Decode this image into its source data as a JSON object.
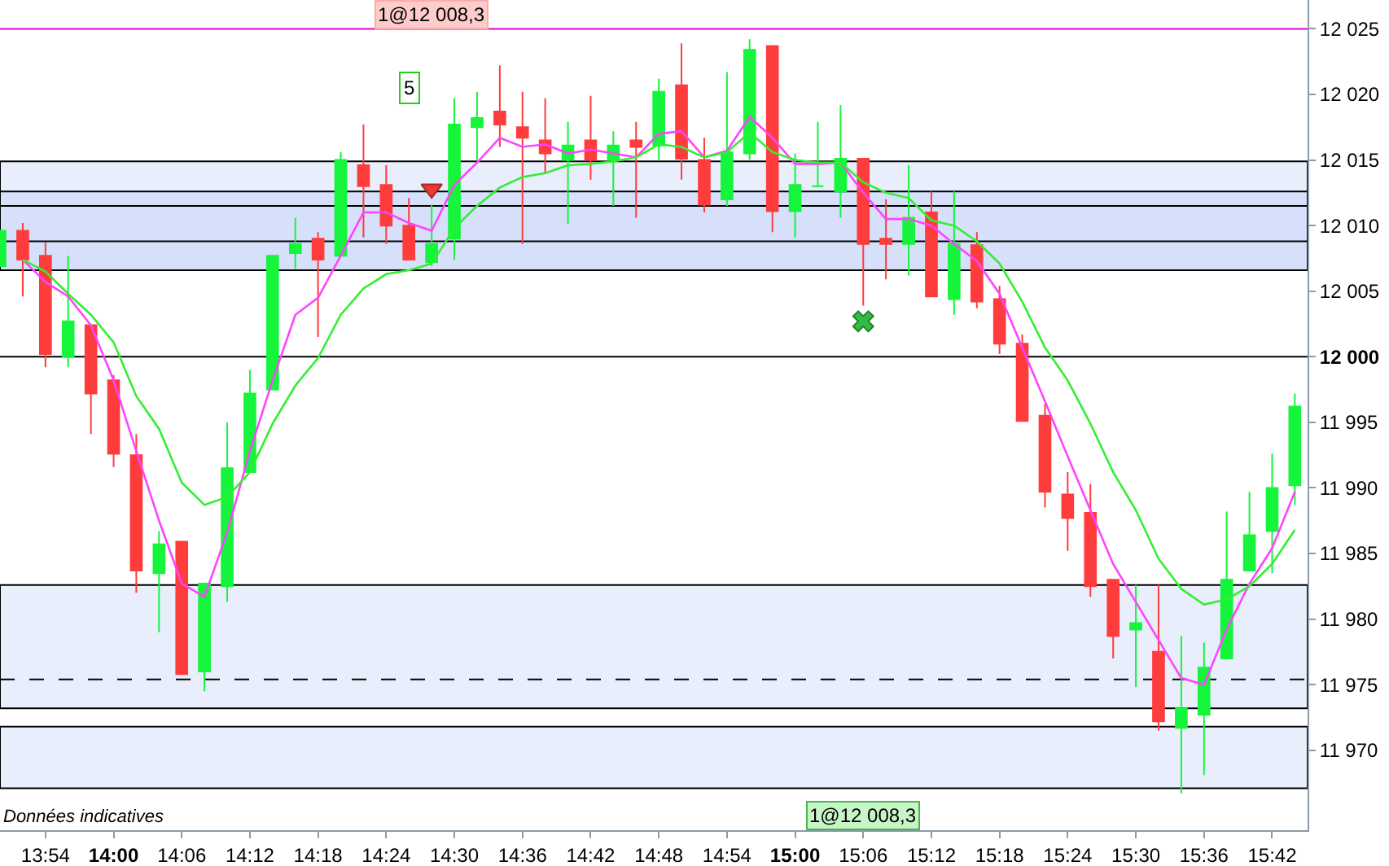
{
  "chart_data": {
    "type": "candlestick",
    "x": [
      13.8333,
      13.8667,
      13.9,
      13.9333,
      13.9667,
      14,
      14.0333,
      14.0667,
      14.1,
      14.1333,
      14.1667,
      14.2,
      14.2333,
      14.2667,
      14.3,
      14.3333,
      14.3667,
      14.4,
      14.4333,
      14.4667,
      14.5,
      14.5333,
      14.5667,
      14.6,
      14.6333,
      14.6667,
      14.7,
      14.7333,
      14.7667,
      14.8,
      14.8333,
      14.8667,
      14.9,
      14.9333,
      14.9667,
      15,
      15.0333,
      15.0667,
      15.1,
      15.1333,
      15.1667,
      15.2,
      15.2333,
      15.2667,
      15.3,
      15.3333,
      15.3667,
      15.4,
      15.4333,
      15.4667,
      15.5,
      15.5333,
      15.5667,
      15.6,
      15.6333,
      15.6667,
      15.7,
      15.7333
    ],
    "ohlc": [
      [
        12006.9,
        12009.6,
        12006.9,
        12009.6
      ],
      [
        12009.6,
        12010.2,
        12004.6,
        12007.4
      ],
      [
        12007.7,
        12008.7,
        11999.2,
        12000.2
      ],
      [
        12000.0,
        12007.7,
        11999.2,
        12002.7
      ],
      [
        12002.4,
        12002.4,
        11994.1,
        11997.2
      ],
      [
        11998.2,
        11998.6,
        11991.6,
        11992.6
      ],
      [
        11992.5,
        11994.1,
        11982.0,
        11983.7
      ],
      [
        11983.5,
        11986.7,
        11979.0,
        11985.7
      ],
      [
        11985.9,
        11985.9,
        11975.8,
        11975.8
      ],
      [
        11976.0,
        11982.7,
        11974.5,
        11982.7
      ],
      [
        11982.5,
        11995.0,
        11981.3,
        11991.5
      ],
      [
        11991.2,
        11999.0,
        11991.2,
        11997.2
      ],
      [
        11997.5,
        12007.7,
        11997.5,
        12007.7
      ],
      [
        12007.9,
        12010.6,
        12006.7,
        12008.6
      ],
      [
        12009.0,
        12009.5,
        12001.5,
        12007.4
      ],
      [
        12007.7,
        12015.6,
        12007.7,
        12015.0
      ],
      [
        12014.6,
        12017.7,
        12009.1,
        12013.0
      ],
      [
        12013.1,
        12014.6,
        12008.6,
        12010.0
      ],
      [
        12010.0,
        12012.1,
        12007.4,
        12007.4
      ],
      [
        12007.2,
        12011.6,
        12006.9,
        12008.6
      ],
      [
        12009.0,
        12019.7,
        12007.4,
        12017.7
      ],
      [
        12017.5,
        12020.2,
        12015.0,
        12018.2
      ],
      [
        12018.7,
        12022.2,
        12016.0,
        12017.7
      ],
      [
        12017.5,
        12020.2,
        12008.6,
        12016.7
      ],
      [
        12016.5,
        12019.7,
        12014.0,
        12015.5
      ],
      [
        12015.0,
        12017.9,
        12010.1,
        12016.1
      ],
      [
        12016.5,
        12019.9,
        12013.5,
        12015.0
      ],
      [
        12015.0,
        12017.2,
        12011.5,
        12016.1
      ],
      [
        12016.5,
        12017.9,
        12010.6,
        12016.0
      ],
      [
        12016.1,
        12021.2,
        12015.0,
        12020.2
      ],
      [
        12020.7,
        12023.9,
        12013.5,
        12015.1
      ],
      [
        12015.0,
        12016.7,
        12011.0,
        12011.6
      ],
      [
        12012.0,
        12021.7,
        12011.5,
        12015.6
      ],
      [
        12015.5,
        12024.2,
        12015.0,
        12023.4
      ],
      [
        12023.7,
        12023.7,
        12009.5,
        12011.1
      ],
      [
        12011.1,
        12015.5,
        12009.1,
        12013.1
      ],
      [
        12013.0,
        12017.9,
        12013.0,
        12013.0
      ],
      [
        12012.6,
        12019.2,
        12010.6,
        12015.1
      ],
      [
        12015.1,
        12015.1,
        12003.9,
        12008.6
      ],
      [
        12009.0,
        12012.0,
        12005.9,
        12008.6
      ],
      [
        12008.6,
        12014.6,
        12006.2,
        12010.6
      ],
      [
        12011.0,
        12012.6,
        12004.6,
        12004.6
      ],
      [
        12004.4,
        12012.6,
        12003.2,
        12008.6
      ],
      [
        12008.5,
        12009.5,
        12003.7,
        12004.2
      ],
      [
        12004.4,
        12005.4,
        12000.2,
        12001.0
      ],
      [
        12001.0,
        12001.7,
        11995.1,
        11995.1
      ],
      [
        11995.5,
        11996.4,
        11988.5,
        11989.7
      ],
      [
        11989.5,
        11991.2,
        11985.2,
        11987.7
      ],
      [
        11988.1,
        11990.3,
        11981.7,
        11982.5
      ],
      [
        11983.0,
        11983.0,
        11977.0,
        11978.7
      ],
      [
        11979.2,
        11982.6,
        11974.8,
        11979.7
      ],
      [
        11977.5,
        11982.6,
        11971.5,
        11972.2
      ],
      [
        11971.7,
        11978.7,
        11966.7,
        11973.2
      ],
      [
        11972.7,
        11978.2,
        11968.1,
        11976.3
      ],
      [
        11977.0,
        11988.2,
        11977.0,
        11983.0
      ],
      [
        11983.7,
        11989.7,
        11983.7,
        11986.4
      ],
      [
        11986.7,
        11992.6,
        11983.5,
        11990.0
      ],
      [
        11990.2,
        11997.2,
        11988.7,
        11996.2
      ]
    ],
    "colors": [
      "#14f53c",
      "#ff3c3c",
      "#ff3c3c",
      "#14f53c",
      "#ff3c3c",
      "#ff3c3c",
      "#ff3c3c",
      "#14f53c",
      "#ff3c3c",
      "#14f53c",
      "#14f53c",
      "#14f53c",
      "#14f53c",
      "#14f53c",
      "#ff3c3c",
      "#14f53c",
      "#ff3c3c",
      "#ff3c3c",
      "#ff3c3c",
      "#14f53c",
      "#14f53c",
      "#14f53c",
      "#ff3c3c",
      "#ff3c3c",
      "#ff3c3c",
      "#14f53c",
      "#ff3c3c",
      "#14f53c",
      "#ff3c3c",
      "#14f53c",
      "#ff3c3c",
      "#ff3c3c",
      "#14f53c",
      "#14f53c",
      "#ff3c3c",
      "#14f53c",
      "#14f53c",
      "#14f53c",
      "#ff3c3c",
      "#ff3c3c",
      "#14f53c",
      "#ff3c3c",
      "#14f53c",
      "#ff3c3c",
      "#ff3c3c",
      "#ff3c3c",
      "#ff3c3c",
      "#ff3c3c",
      "#ff3c3c",
      "#ff3c3c",
      "#14f53c",
      "#ff3c3c",
      "#14f53c",
      "#14f53c",
      "#14f53c",
      "#14f53c",
      "#14f53c",
      "#14f53c"
    ],
    "series": [
      {
        "type": "line",
        "color": "#ff44ff",
        "x": [
          13.8667,
          13.9,
          13.9333,
          13.9667,
          14,
          14.0333,
          14.0667,
          14.1,
          14.1333,
          14.1667,
          14.2,
          14.2333,
          14.2667,
          14.3,
          14.3333,
          14.3667,
          14.4,
          14.4333,
          14.4667,
          14.5,
          14.5333,
          14.5667,
          14.6,
          14.6333,
          14.6667,
          14.7,
          14.7333,
          14.7667,
          14.8,
          14.8333,
          14.8667,
          14.9,
          14.9333,
          14.9667,
          15,
          15.0333,
          15.0667,
          15.1,
          15.1333,
          15.1667,
          15.2,
          15.2333,
          15.2667,
          15.3,
          15.3333,
          15.3667,
          15.4,
          15.4333,
          15.4667,
          15.5,
          15.5333,
          15.5667,
          15.6,
          15.6333,
          15.6667,
          15.7,
          15.7333
        ],
        "values": [
          12007.4,
          12005.7,
          12004.6,
          12002.4,
          11998.2,
          11992.8,
          11987.5,
          11982.7,
          11981.7,
          11986.6,
          11992.8,
          11998.2,
          12003.2,
          12004.5,
          12007.7,
          12011.0,
          12011.0,
          12010.2,
          12009.6,
          12013.1,
          12014.8,
          12016.7,
          12016.0,
          12016.2,
          12015.5,
          12015.8,
          12015.5,
          12015.2,
          12017.0,
          12017.2,
          12015.2,
          12015.7,
          12018.3,
          12016.7,
          12014.7,
          12014.7,
          12014.8,
          12012.5,
          12010.5,
          12010.5,
          12010.0,
          12008.6,
          12007.3,
          12004.8,
          12000.7,
          11996.6,
          11992.4,
          11988.3,
          11984.2,
          11981.3,
          11978.4,
          11975.5,
          11975.0,
          11979.2,
          11982.7,
          11985.4,
          11989.7
        ]
      },
      {
        "type": "line",
        "color": "#33ee33",
        "x": [
          13.8667,
          13.9,
          13.9333,
          13.9667,
          14,
          14.0333,
          14.0667,
          14.1,
          14.1333,
          14.1667,
          14.2,
          14.2333,
          14.2667,
          14.3,
          14.3333,
          14.3667,
          14.4,
          14.4333,
          14.4667,
          14.5,
          14.5333,
          14.5667,
          14.6,
          14.6333,
          14.6667,
          14.7,
          14.7333,
          14.7667,
          14.8,
          14.8333,
          14.8667,
          14.9,
          14.9333,
          14.9667,
          15,
          15.0333,
          15.0667,
          15.1,
          15.1333,
          15.1667,
          15.2,
          15.2333,
          15.2667,
          15.3,
          15.3333,
          15.3667,
          15.4,
          15.4333,
          15.4667,
          15.5,
          15.5333,
          15.5667,
          15.6,
          15.6333,
          15.6667,
          15.7,
          15.7333
        ],
        "values": [
          12007.4,
          12006.5,
          12004.8,
          12003.2,
          12001.1,
          11997.0,
          11994.5,
          11990.4,
          11988.7,
          11989.3,
          11991.2,
          11994.9,
          11997.8,
          11999.9,
          12003.2,
          12005.2,
          12006.3,
          12006.6,
          12007.1,
          12009.8,
          12011.5,
          12012.9,
          12013.7,
          12014.0,
          12014.6,
          12014.7,
          12014.9,
          12015.2,
          12016.2,
          12016.0,
          12015.2,
          12015.6,
          12017.1,
          12015.6,
          12015.0,
          12014.8,
          12014.8,
          12013.3,
          12012.5,
          12012.1,
          12010.4,
          12010.0,
          12008.8,
          12007.1,
          12004.2,
          12000.7,
          11998.2,
          11994.9,
          11991.2,
          11988.3,
          11984.6,
          11982.3,
          11981.1,
          11981.5,
          11982.5,
          11984.2,
          11986.8
        ]
      },
      {
        "type": "scatter",
        "color": "#e83838",
        "marker": "triangle",
        "x": [
          14.4667
        ],
        "values": [
          12012.8
        ]
      },
      {
        "type": "scatter",
        "color": "#33bb44",
        "marker": "cross",
        "x": [
          15.1
        ],
        "values": [
          12002.7
        ]
      }
    ],
    "xlim": [
      13.8333,
      15.752
    ],
    "xticks": [
      {
        "value": 13.9,
        "label": "13:54"
      },
      {
        "value": 14,
        "label": "14:00"
      },
      {
        "value": 14.1,
        "label": "14:06"
      },
      {
        "value": 14.2,
        "label": "14:12"
      },
      {
        "value": 14.3,
        "label": "14:18"
      },
      {
        "value": 14.4,
        "label": "14:24"
      },
      {
        "value": 14.5,
        "label": "14:30"
      },
      {
        "value": 14.6,
        "label": "14:36"
      },
      {
        "value": 14.7,
        "label": "14:42"
      },
      {
        "value": 14.8,
        "label": "14:48"
      },
      {
        "value": 14.9,
        "label": "14:54"
      },
      {
        "value": 15,
        "label": "15:00"
      },
      {
        "value": 15.1,
        "label": "15:06"
      },
      {
        "value": 15.2,
        "label": "15:12"
      },
      {
        "value": 15.3,
        "label": "15:18"
      },
      {
        "value": 15.4,
        "label": "15:24"
      },
      {
        "value": 15.5,
        "label": "15:30"
      },
      {
        "value": 15.6,
        "label": "15:36"
      },
      {
        "value": 15.7,
        "label": "15:42"
      }
    ],
    "ylim": [
      11963.9,
      12027.2
    ],
    "yticks": [
      {
        "value": 11970,
        "label": "11 970"
      },
      {
        "value": 11975,
        "label": "11 975"
      },
      {
        "value": 11980,
        "label": "11 980"
      },
      {
        "value": 11985,
        "label": "11 985"
      },
      {
        "value": 11990,
        "label": "11 990"
      },
      {
        "value": 11995,
        "label": "11 995"
      },
      {
        "value": 12000,
        "label": "12 000"
      },
      {
        "value": 12005,
        "label": "12 005"
      },
      {
        "value": 12010,
        "label": "12 010"
      },
      {
        "value": 12015,
        "label": "12 015"
      },
      {
        "value": 12020,
        "label": "12 020"
      },
      {
        "value": 12025,
        "label": "12 025"
      }
    ],
    "bands": [
      {
        "axis": "y",
        "from": 12007.2,
        "to": 12014.9,
        "color": "#e8eefc"
      },
      {
        "axis": "y",
        "from": 12006.6,
        "to": 12012.6,
        "color": "#d6e0fa"
      },
      {
        "axis": "y",
        "from": 11973.2,
        "to": 11982.6,
        "color": "#e8eefc"
      },
      {
        "axis": "y",
        "from": 11967.1,
        "to": 11971.8,
        "color": "#e8eefc"
      }
    ],
    "ref_lines": [
      {
        "axis": "y",
        "value": 12025,
        "color": "#e000e0",
        "line_style": "solid"
      },
      {
        "axis": "y",
        "value": 12011.5,
        "color": "#000000",
        "line_style": "solid"
      },
      {
        "axis": "y",
        "value": 12008.8,
        "color": "#000000",
        "line_style": "solid"
      },
      {
        "axis": "y",
        "value": 12000,
        "color": "#000000",
        "line_style": "solid"
      },
      {
        "axis": "y",
        "value": 11975.4,
        "color": "#000000",
        "line_style": "dashed"
      }
    ],
    "annotations": [
      "1@12 008,3",
      {
        "text": "5",
        "x": 14.4333,
        "y": 12020.5
      },
      "1@12 008,3",
      "Données indicatives"
    ],
    "grid": false
  }
}
